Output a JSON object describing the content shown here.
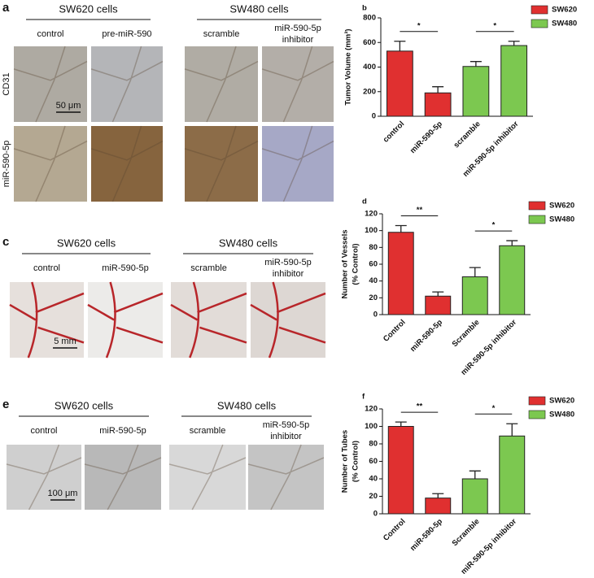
{
  "panels": [
    {
      "letter": "a",
      "groups": [
        {
          "title": "SW620 cells",
          "columns": [
            [
              "control"
            ],
            [
              "pre-miR-590"
            ]
          ]
        },
        {
          "title": "SW480 cells",
          "columns": [
            [
              "scramble"
            ],
            [
              "miR-590-5p",
              "inhibitor"
            ]
          ]
        }
      ],
      "rows": [
        "CD31",
        "miR-590-5p"
      ],
      "scale_bar": "50 μm"
    },
    {
      "letter": "c",
      "groups": [
        {
          "title": "SW620 cells",
          "columns": [
            [
              "control"
            ],
            [
              "miR-590-5p"
            ]
          ]
        },
        {
          "title": "SW480 cells",
          "columns": [
            [
              "scramble"
            ],
            [
              "miR-590-5p",
              "inhibitor"
            ]
          ]
        }
      ],
      "scale_bar": "5 mm"
    },
    {
      "letter": "e",
      "groups": [
        {
          "title": "SW620 cells",
          "columns": [
            [
              "control"
            ],
            [
              "miR-590-5p"
            ]
          ]
        },
        {
          "title": "SW480 cells",
          "columns": [
            [
              "scramble"
            ],
            [
              "miR-590-5p",
              "inhibitor"
            ]
          ]
        }
      ],
      "scale_bar": "100 μm"
    }
  ],
  "chart_data": [
    {
      "letter": "b",
      "type": "bar",
      "ylabel": [
        "Tumor Volume (mm³)"
      ],
      "categories": [
        "control",
        "miR-590-5p",
        "scramble",
        "miR-590-5p inhibitor"
      ],
      "series": [
        {
          "name": "SW620",
          "color": "#e03030",
          "values": [
            530,
            190,
            null,
            null
          ],
          "errors": [
            80,
            50,
            null,
            null
          ]
        },
        {
          "name": "SW480",
          "color": "#7cc850",
          "values": [
            null,
            null,
            405,
            575
          ],
          "errors": [
            null,
            null,
            40,
            35
          ]
        }
      ],
      "ylim": [
        0,
        800
      ],
      "yticks": [
        0,
        200,
        400,
        600,
        800
      ],
      "annotations": [
        "*",
        "*"
      ],
      "legend": "upper right"
    },
    {
      "letter": "d",
      "type": "bar",
      "ylabel": [
        "Number of Vessels",
        "(% Control)"
      ],
      "categories": [
        "Control",
        "miR-590-5p",
        "Scramble",
        "miR-590-5p inhibitor"
      ],
      "series": [
        {
          "name": "SW620",
          "color": "#e03030",
          "values": [
            98,
            22,
            null,
            null
          ],
          "errors": [
            8,
            5,
            null,
            null
          ]
        },
        {
          "name": "SW480",
          "color": "#7cc850",
          "values": [
            null,
            null,
            45,
            82
          ],
          "errors": [
            null,
            null,
            11,
            6
          ]
        }
      ],
      "ylim": [
        0,
        120
      ],
      "yticks": [
        0,
        20,
        40,
        60,
        80,
        100,
        120
      ],
      "annotations": [
        "**",
        "*"
      ],
      "legend": "upper right"
    },
    {
      "letter": "f",
      "type": "bar",
      "ylabel": [
        "Number of Tubes",
        "(% Control)"
      ],
      "categories": [
        "Control",
        "miR-590-5p",
        "Scramble",
        "miR-590-5p inhibitor"
      ],
      "series": [
        {
          "name": "SW620",
          "color": "#e03030",
          "values": [
            100,
            18,
            null,
            null
          ],
          "errors": [
            5,
            5,
            null,
            null
          ]
        },
        {
          "name": "SW480",
          "color": "#7cc850",
          "values": [
            null,
            null,
            40,
            89
          ],
          "errors": [
            null,
            null,
            9,
            14
          ]
        }
      ],
      "ylim": [
        0,
        120
      ],
      "yticks": [
        0,
        20,
        40,
        60,
        80,
        100,
        120
      ],
      "annotations": [
        "**",
        "*"
      ],
      "legend": "upper right"
    }
  ]
}
